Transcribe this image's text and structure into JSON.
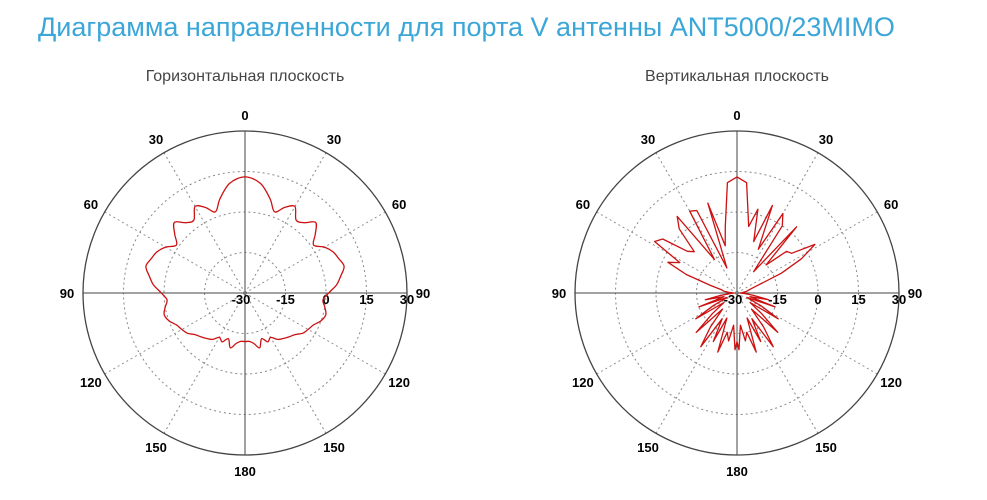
{
  "title": "Диаграмма направленности для порта V антенны ANT5000/23MIMO",
  "colors": {
    "title": "#3ba6d8",
    "pattern": "#cc1111",
    "grid": "#444444"
  },
  "chart_data": [
    {
      "type": "polar",
      "subtitle": "Горизонтальная плоскость",
      "angle_labels": [
        "0",
        "30",
        "60",
        "90",
        "120",
        "150",
        "180",
        "150",
        "120",
        "90",
        "60",
        "30"
      ],
      "radial_labels": [
        "-30",
        "-15",
        "0",
        "15",
        "30"
      ],
      "rlim": [
        -30,
        30
      ],
      "series": [
        {
          "style": "smooth",
          "angles": [
            0,
            8,
            15,
            20,
            25,
            30,
            35,
            40,
            45,
            50,
            55,
            60,
            65,
            70,
            75,
            80,
            85,
            90,
            95,
            100,
            105,
            110,
            115,
            120,
            125,
            130,
            135,
            140,
            145,
            150,
            155,
            160,
            165,
            170,
            175,
            180,
            185,
            190,
            195,
            200,
            205,
            210,
            215,
            220,
            225,
            230,
            235,
            240,
            245,
            250,
            255,
            260,
            265,
            270,
            275,
            280,
            285,
            290,
            295,
            300,
            305,
            310,
            315,
            320,
            325,
            330,
            335,
            340,
            345,
            352
          ],
          "values": [
            13,
            11,
            6,
            2,
            5,
            7,
            3,
            4,
            7,
            4,
            1,
            4,
            6,
            7,
            8,
            6,
            4,
            1,
            -1,
            0,
            1,
            0,
            -2,
            -3,
            -4,
            -6,
            -7,
            -8,
            -9,
            -11,
            -10,
            -12,
            -9,
            -11,
            -12,
            -12,
            -12,
            -11,
            -9,
            -12,
            -10,
            -11,
            -9,
            -8,
            -7,
            -6,
            -4,
            -3,
            -2,
            0,
            1,
            0,
            -1,
            1,
            4,
            6,
            8,
            7,
            6,
            4,
            1,
            4,
            7,
            4,
            3,
            7,
            5,
            2,
            6,
            11
          ]
        }
      ]
    },
    {
      "type": "polar",
      "subtitle": "Вертикальная плоскость",
      "angle_labels": [
        "0",
        "30",
        "60",
        "90",
        "120",
        "150",
        "180",
        "150",
        "120",
        "90",
        "60",
        "30"
      ],
      "radial_labels": [
        "-30",
        "-15",
        "0",
        "15",
        "30"
      ],
      "rlim": [
        -30,
        30
      ],
      "series": [
        {
          "style": "jagged",
          "angles": [
            0,
            5,
            10,
            14,
            18,
            22,
            26,
            30,
            34,
            38,
            42,
            46,
            50,
            54,
            58,
            62,
            66,
            70,
            74,
            78,
            82,
            86,
            90,
            94,
            98,
            102,
            106,
            110,
            114,
            118,
            122,
            126,
            130,
            134,
            138,
            142,
            146,
            150,
            154,
            158,
            162,
            166,
            170,
            174,
            178,
            180,
            182,
            186,
            190,
            194,
            198,
            202,
            206,
            210,
            214,
            218,
            222,
            226,
            230,
            234,
            238,
            242,
            246,
            250,
            254,
            258,
            262,
            266,
            270,
            274,
            278,
            282,
            286,
            290,
            294,
            298,
            302,
            306,
            310,
            314,
            318,
            322,
            326,
            330,
            334,
            338,
            342,
            346,
            350,
            355
          ],
          "values": [
            13,
            11,
            -5,
            2,
            -10,
            5,
            -12,
            4,
            0,
            -20,
            3,
            -15,
            -6,
            -5,
            4,
            -3,
            -12,
            -22,
            -25,
            -26,
            -27,
            -28,
            -29,
            -27,
            -24,
            -18,
            -25,
            -15,
            -26,
            -20,
            -12,
            -24,
            -18,
            -9,
            -22,
            -14,
            -6,
            -19,
            -10,
            -20,
            -7,
            -15,
            -12,
            -18,
            -9,
            -12,
            -9,
            -18,
            -12,
            -15,
            -7,
            -20,
            -10,
            -19,
            -6,
            -14,
            -22,
            -9,
            -18,
            -24,
            -12,
            -20,
            -26,
            -15,
            -25,
            -18,
            -24,
            -28,
            -29,
            -27,
            -25,
            -24,
            -20,
            -10,
            -2,
            -6,
            6,
            4,
            -6,
            -8,
            2,
            6,
            -15,
            5,
            4,
            -20,
            5,
            -12,
            -5,
            11
          ]
        }
      ]
    }
  ]
}
